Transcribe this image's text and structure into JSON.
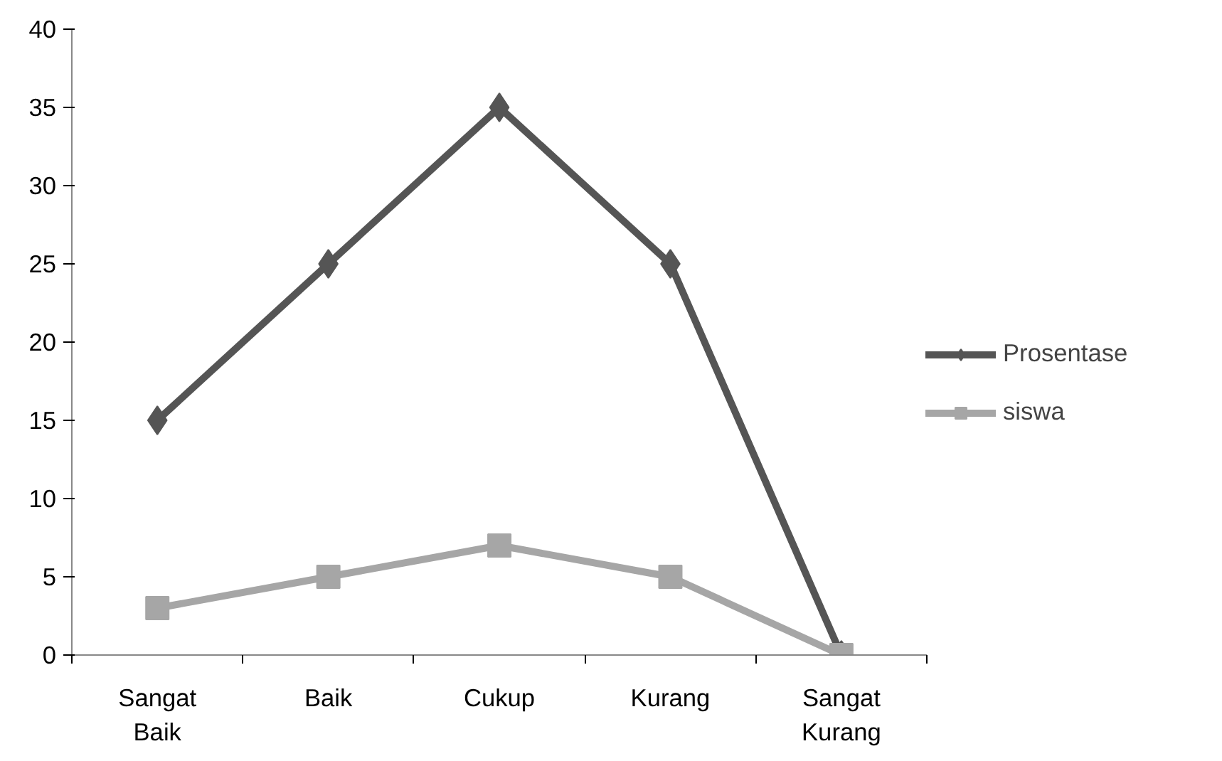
{
  "chart_data": {
    "type": "line",
    "categories": [
      "Sangat\nBaik",
      "Baik",
      "Cukup",
      "Kurang",
      "Sangat\nKurang"
    ],
    "series": [
      {
        "name": "Prosentase",
        "color": "#555555",
        "values": [
          15,
          25,
          35,
          25,
          0
        ],
        "marker": "diamond"
      },
      {
        "name": "siswa",
        "color": "#a6a6a6",
        "values": [
          3,
          5,
          7,
          5,
          0
        ],
        "marker": "square"
      }
    ],
    "ylim": [
      0,
      40
    ],
    "yticks": [
      0,
      5,
      10,
      15,
      20,
      25,
      30,
      35,
      40
    ],
    "grid": false,
    "legend": "right",
    "line_style": "solid"
  }
}
